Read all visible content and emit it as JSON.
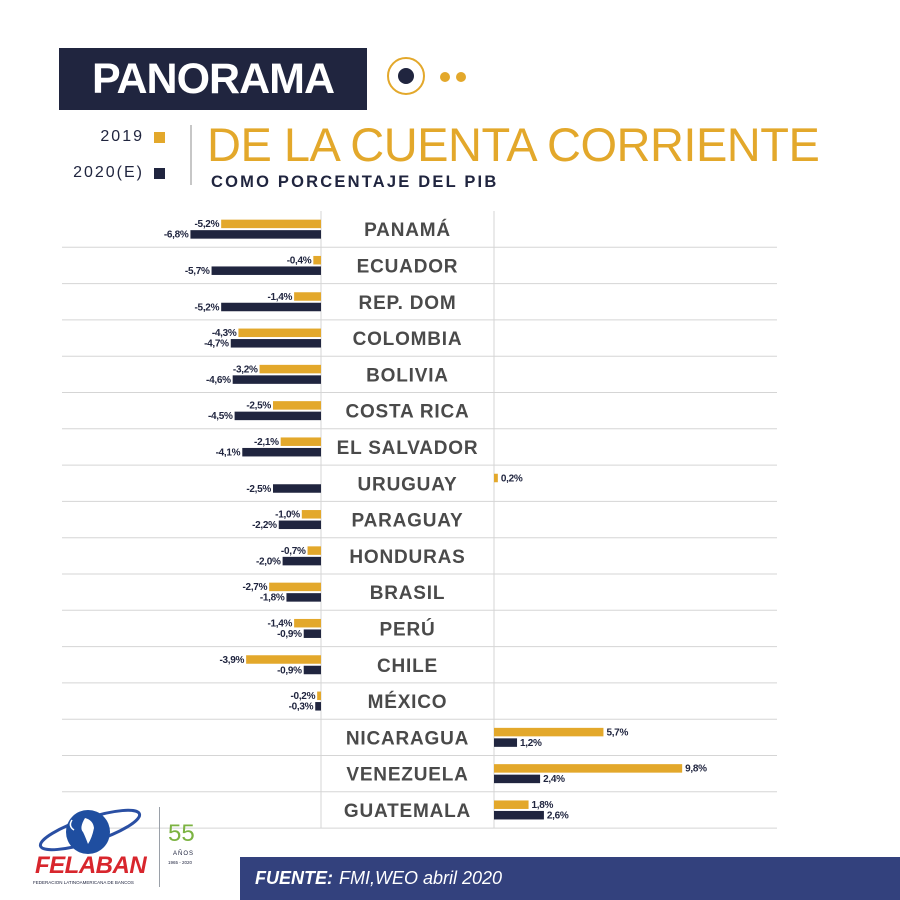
{
  "header": {
    "badge_title": "PANORAMA",
    "main_title": "DE LA CUENTA CORRIENTE",
    "subtitle": "COMO PORCENTAJE DEL PIB"
  },
  "legend": [
    {
      "label": "2019",
      "color": "#e3a82b"
    },
    {
      "label": "2020(E)",
      "color": "#20253f"
    }
  ],
  "colors": {
    "gold": "#e3a82b",
    "navy": "#20253f",
    "grid": "#d5d5d5",
    "source_bar": "#33417d"
  },
  "chart_data": {
    "type": "bar",
    "orientation": "horizontal",
    "title": "PANORAMA DE LA CUENTA CORRIENTE",
    "subtitle": "COMO PORCENTAJE DEL PIB",
    "unit": "%",
    "categories": [
      "PANAMÁ",
      "ECUADOR",
      "REP. DOM",
      "COLOMBIA",
      "BOLIVIA",
      "COSTA RICA",
      "EL SALVADOR",
      "URUGUAY",
      "PARAGUAY",
      "HONDURAS",
      "BRASIL",
      "PERÚ",
      "CHILE",
      "MÉXICO",
      "NICARAGUA",
      "VENEZUELA",
      "GUATEMALA"
    ],
    "series": [
      {
        "name": "2019",
        "color": "#e3a82b",
        "values": [
          -5.2,
          -0.4,
          -1.4,
          -4.3,
          -3.2,
          -2.5,
          -2.1,
          0.2,
          -1.0,
          -0.7,
          -2.7,
          -1.4,
          -3.9,
          -0.2,
          5.7,
          9.8,
          1.8
        ],
        "labels": [
          "-5,2%",
          "-0,4%",
          "-1,4%",
          "-4,3%",
          "-3,2%",
          "-2,5%",
          "-2,1%",
          "0,2%",
          "-1,0%",
          "-0,7%",
          "-2,7%",
          "-1,4%",
          "-3,9%",
          "-0,2%",
          "5,7%",
          "9,8%",
          "1,8%"
        ]
      },
      {
        "name": "2020(E)",
        "color": "#20253f",
        "values": [
          -6.8,
          -5.7,
          -5.2,
          -4.7,
          -4.6,
          -4.5,
          -4.1,
          -2.5,
          -2.2,
          -2.0,
          -1.8,
          -0.9,
          -0.9,
          -0.3,
          1.2,
          2.4,
          2.6
        ],
        "labels": [
          "-6,8%",
          "-5,7%",
          "-5,2%",
          "-4,7%",
          "-4,6%",
          "-4,5%",
          "-4,1%",
          "-2,5%",
          "-2,2%",
          "-2,0%",
          "-1,8%",
          "-0,9%",
          "-0,9%",
          "-0,3%",
          "1,2%",
          "2,4%",
          "2,6%"
        ]
      }
    ]
  },
  "footer": {
    "source_label": "FUENTE:",
    "source_text": "FMI,WEO abril 2020",
    "logo_name": "FELABAN",
    "logo_tagline": "FEDERACION LATINOAMERICANA DE BANCOS",
    "anniversary_number": "55",
    "anniversary_word": "AÑOS",
    "anniversary_years": "1965 - 2020"
  }
}
